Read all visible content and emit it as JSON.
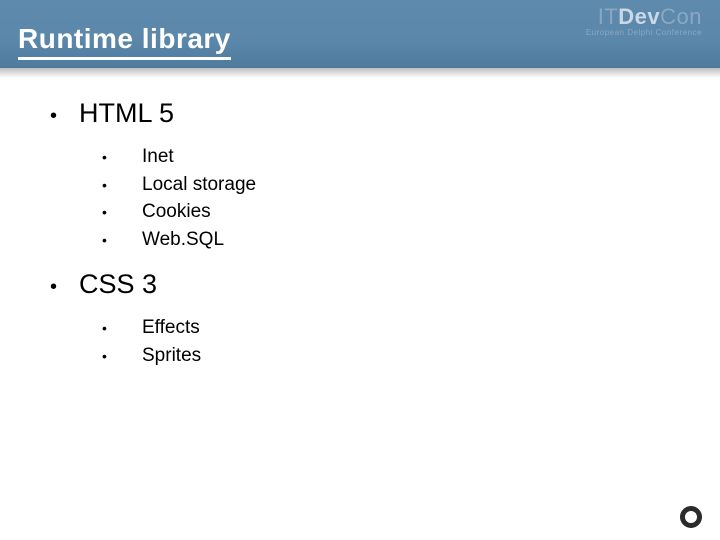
{
  "header": {
    "title": "Runtime library",
    "brand_prefix": "IT",
    "brand_mid": "Dev",
    "brand_suffix": "Con",
    "brand_sub": "European Delphi Conference",
    "background_color": "#5b87aa",
    "title_color": "#ffffff"
  },
  "content": {
    "items": [
      {
        "label": "HTML 5",
        "children": [
          {
            "label": "Inet"
          },
          {
            "label": "Local storage"
          },
          {
            "label": "Cookies"
          },
          {
            "label": "Web.SQL"
          }
        ]
      },
      {
        "label": "CSS 3",
        "children": [
          {
            "label": "Effects"
          },
          {
            "label": "Sprites"
          }
        ]
      }
    ],
    "bullet_char": "•",
    "top_fontsize": 27,
    "sub_fontsize": 19,
    "text_color": "#000000"
  },
  "background_color": "#ffffff"
}
